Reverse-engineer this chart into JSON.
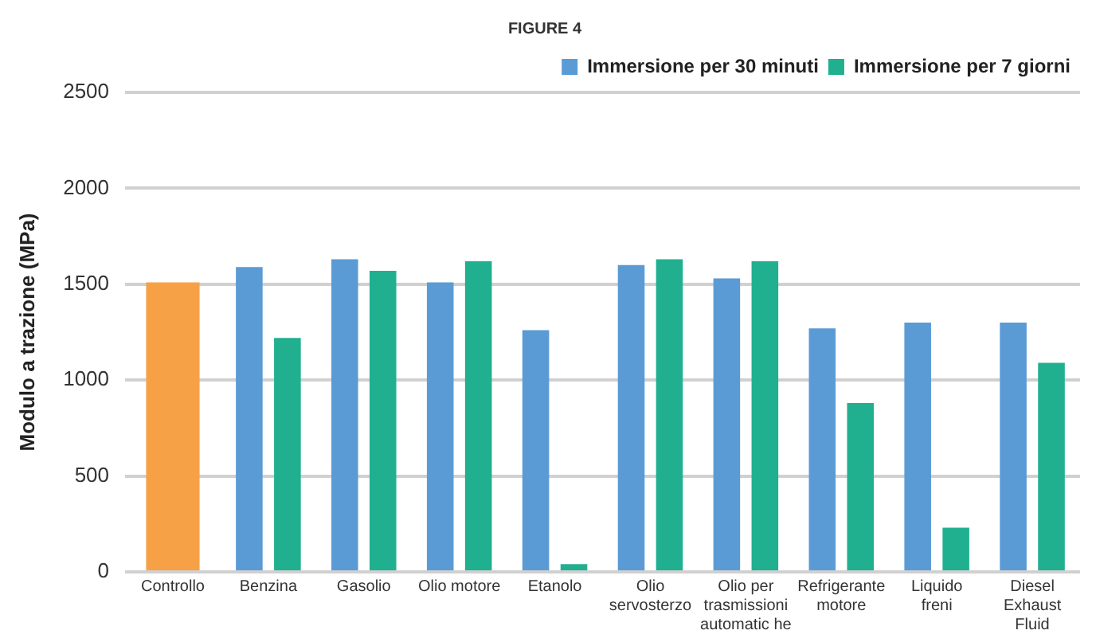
{
  "chart_data": {
    "type": "bar",
    "title": "FIGURE 4",
    "ylabel": "Modulo a trazione (MPa)",
    "categories": [
      "Controllo",
      "Benzina",
      "Gasolio",
      "Olio motore",
      "Etanolo",
      "Olio servosterzo",
      "Olio per trasmissioni automatic he",
      "Refrigerante motore",
      "Liquido freni",
      "Diesel Exhaust Fluid"
    ],
    "series": [
      {
        "name": "Immersione per 30 minuti",
        "color": "#5b9bd5",
        "colors": [
          "#f7a147",
          "#5b9bd5",
          "#5b9bd5",
          "#5b9bd5",
          "#5b9bd5",
          "#5b9bd5",
          "#5b9bd5",
          "#5b9bd5",
          "#5b9bd5",
          "#5b9bd5"
        ],
        "values": [
          1510,
          1590,
          1630,
          1510,
          1260,
          1600,
          1530,
          1270,
          1300,
          1300
        ]
      },
      {
        "name": "Immersione per 7 giorni",
        "color": "#20b090",
        "values": [
          null,
          1220,
          1570,
          1620,
          40,
          1630,
          1620,
          880,
          230,
          1090
        ]
      }
    ],
    "ylim": [
      0,
      2500
    ],
    "yticks": [
      0,
      500,
      1000,
      1500,
      2000,
      2500
    ],
    "grid": "y",
    "legend": "top right"
  }
}
